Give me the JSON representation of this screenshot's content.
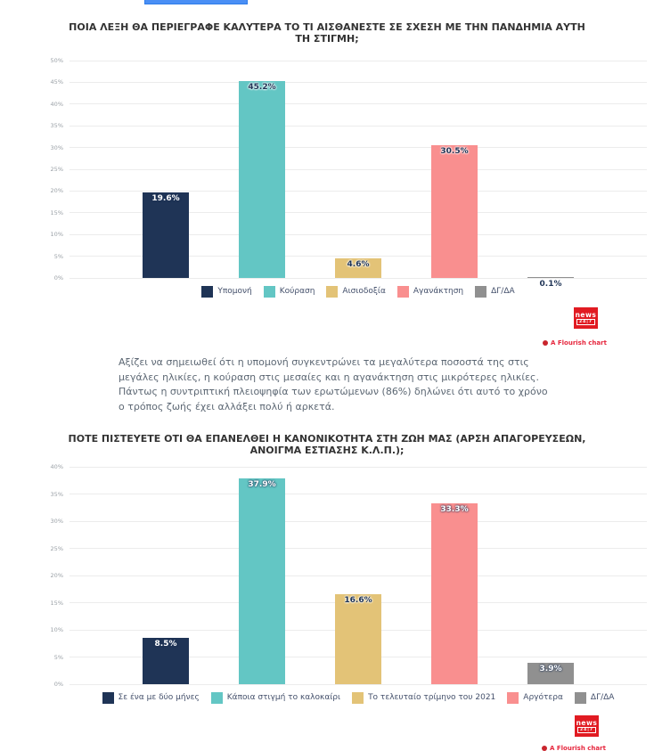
{
  "colors": {
    "top_button": "#4a8ff5",
    "logo_red": "#e11b22",
    "flourish_red": "#e6273e",
    "flourish_dot": "#c9252d",
    "title_text": "#333333",
    "body_text": "#5d6874"
  },
  "branding": {
    "logo_line1": "news",
    "logo_line2": "24|7",
    "flourish_credit": "A Flourish chart"
  },
  "paragraph": "Αξίζει να σημειωθεί ότι η υπομονή συγκεντρώνει τα μεγαλύτερα ποσοστά της στις μεγάλες ηλικίες, η κούραση στις μεσαίες και η αγανάκτηση στις μικρότερες ηλικίες. Πάντως η συντριπτική πλειοψηφία των ερωτώμενων (86%) δηλώνει ότι αυτό το χρόνο ο τρόπος ζωής έχει αλλάξει πολύ ή αρκετά.",
  "chart_data": [
    {
      "type": "bar",
      "title": "ΠΟΙΑ ΛΕΞΗ ΘΑ ΠΕΡΙΕΓΡΑΦΕ ΚΑΛΥΤΕΡΑ ΤΟ ΤΙ ΑΙΣΘΑΝΕΣΤΕ ΣΕ ΣΧΕΣΗ ΜΕ ΤΗΝ ΠΑΝΔΗΜΙΑ ΑΥΤΗ ΤΗ ΣΤΙΓΜΗ;",
      "categories": [
        "Υπομονή",
        "Κούραση",
        "Αισιοδοξία",
        "Αγανάκτηση",
        "ΔΓ/ΔΑ"
      ],
      "values": [
        19.6,
        45.2,
        4.6,
        30.5,
        0.1
      ],
      "value_labels": [
        "19.6%",
        "45.2%",
        "4.6%",
        "30.5%",
        "0.1%"
      ],
      "colors": [
        "#1f3456",
        "#63c6c4",
        "#e3c377",
        "#f98f8f",
        "#909090"
      ],
      "label_styles": [
        "light",
        "dark",
        "dark",
        "dark",
        "dark"
      ],
      "label_pos": [
        "in",
        "in",
        "in",
        "in",
        "below"
      ],
      "xlabel": "",
      "ylabel": "",
      "ylim": [
        0,
        50
      ],
      "ytick_step": 5,
      "ytick_labels": [
        "0%",
        "5%",
        "10%",
        "15%",
        "20%",
        "25%",
        "30%",
        "35%",
        "40%",
        "45%",
        "50%"
      ],
      "grid": true,
      "legend_position": "bottom"
    },
    {
      "type": "bar",
      "title": "ΠΟΤΕ ΠΙΣΤΕΥΕΤΕ ΟΤΙ ΘΑ ΕΠΑΝΕΛΘΕΙ Η ΚΑΝΟΝΙΚΟΤΗΤΑ ΣΤΗ ΖΩΗ ΜΑΣ (ΑΡΣΗ ΑΠΑΓΟΡΕΥΣΕΩΝ, ΑΝΟΙΓΜΑ ΕΣΤΙΑΣΗΣ Κ.Λ.Π.);",
      "categories": [
        "Σε ένα με δύο μήνες",
        "Κάποια στιγμή το καλοκαίρι",
        "Το τελευταίο τρίμηνο του 2021",
        "Αργότερα",
        "ΔΓ/ΔΑ"
      ],
      "values": [
        8.5,
        37.9,
        16.6,
        33.3,
        3.9
      ],
      "value_labels": [
        "8.5%",
        "37.9%",
        "16.6%",
        "33.3%",
        "3.9%"
      ],
      "colors": [
        "#1f3456",
        "#63c6c4",
        "#e3c377",
        "#f98f8f",
        "#909090"
      ],
      "label_styles": [
        "light",
        "light",
        "dark",
        "light",
        "light"
      ],
      "label_pos": [
        "in",
        "in",
        "in",
        "in",
        "in"
      ],
      "xlabel": "",
      "ylabel": "",
      "ylim": [
        0,
        40
      ],
      "ytick_step": 5,
      "ytick_labels": [
        "0%",
        "5%",
        "10%",
        "15%",
        "20%",
        "25%",
        "30%",
        "35%",
        "40%"
      ],
      "grid": true,
      "legend_position": "bottom"
    }
  ]
}
